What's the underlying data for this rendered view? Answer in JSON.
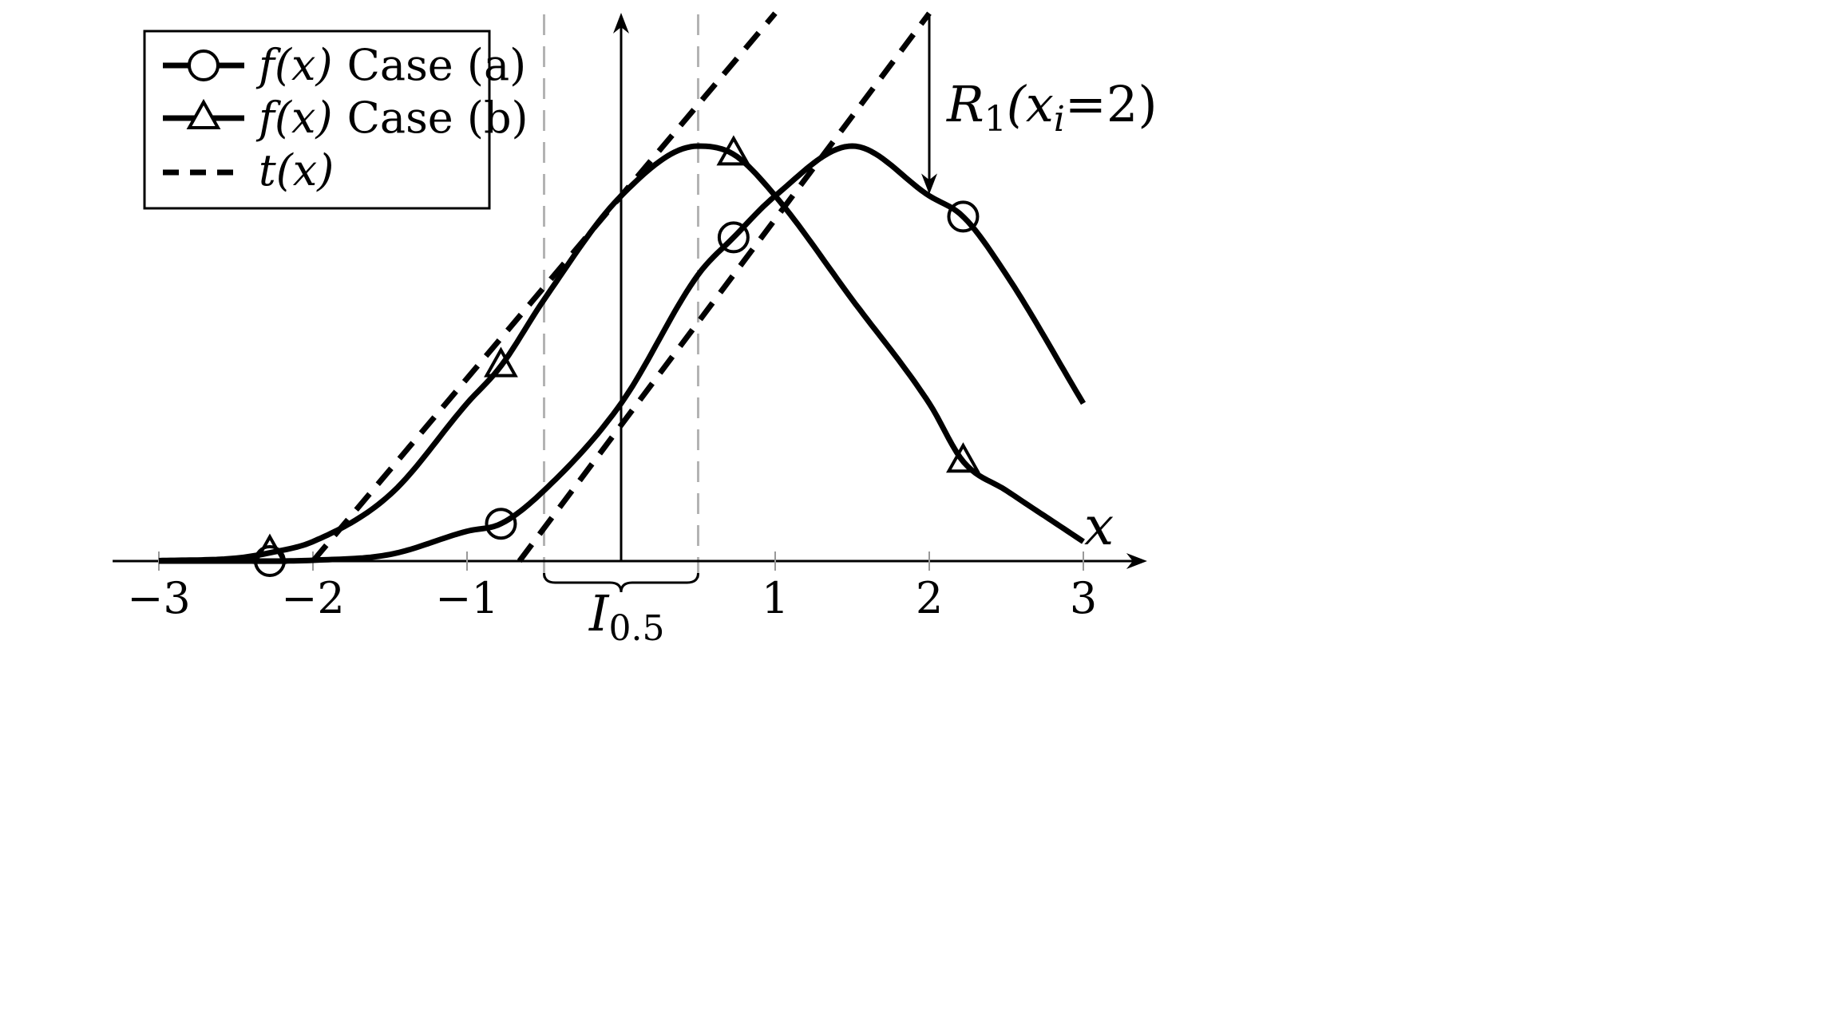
{
  "chart_data": {
    "type": "line",
    "xlabel": "x",
    "xlim": [
      -3.3,
      3.3
    ],
    "ylim": [
      -0.02,
      1.18
    ],
    "x_ticks": [
      -3,
      -2,
      -1,
      1,
      2,
      3
    ],
    "x_tick_labels": [
      "−3",
      "−2",
      "−1",
      "1",
      "2",
      "3"
    ],
    "legend_position": "top-left",
    "legend": [
      {
        "id": "a",
        "math": "f(x)",
        "text": "Case (a)",
        "marker": "circle",
        "style": "solid"
      },
      {
        "id": "b",
        "math": "f(x)",
        "text": "Case (b)",
        "marker": "triangle",
        "style": "solid"
      },
      {
        "id": "t",
        "math": "t(x)",
        "text": "",
        "marker": "none",
        "style": "dashed"
      }
    ],
    "series": [
      {
        "legend_ref": "a",
        "marker": "circle",
        "x": [
          -3,
          -2.5,
          -2.28,
          -2,
          -1.5,
          -1,
          -0.78,
          -0.5,
          0,
          0.5,
          0.73,
          1,
          1.5,
          2,
          2.22,
          2.5,
          3
        ],
        "y": [
          0.0,
          0.0,
          0.0,
          0.002,
          0.016,
          0.072,
          0.09,
          0.17,
          0.38,
          0.69,
          0.78,
          0.88,
          1.0,
          0.88,
          0.83,
          0.69,
          0.38
        ],
        "marker_x": [
          -2.28,
          -0.78,
          0.73,
          2.22
        ]
      },
      {
        "legend_ref": "b",
        "marker": "triangle",
        "x": [
          -3,
          -2.5,
          -2.28,
          -2,
          -1.5,
          -1,
          -0.78,
          -0.5,
          0,
          0.5,
          0.73,
          1,
          1.5,
          2,
          2.22,
          2.5,
          3
        ],
        "y": [
          0.001,
          0.007,
          0.02,
          0.047,
          0.16,
          0.38,
          0.47,
          0.63,
          0.88,
          1.0,
          0.98,
          0.88,
          0.63,
          0.38,
          0.24,
          0.17,
          0.047
        ],
        "marker_x": [
          -2.28,
          -0.78,
          0.73,
          2.22
        ]
      },
      {
        "legend_ref": "t",
        "style": "dashed",
        "x": [
          -2.0,
          1.0
        ],
        "y": [
          0.0,
          1.32
        ]
      },
      {
        "legend_ref": "t",
        "style": "dashed",
        "x": [
          -0.66,
          2.0
        ],
        "y": [
          0.0,
          1.32
        ]
      }
    ],
    "vertical_guides_x": [
      -0.5,
      0.5
    ],
    "annotations": {
      "interval": {
        "x": [
          -0.5,
          0.5
        ],
        "label_main": "I",
        "label_sub": "0.5"
      },
      "residual": {
        "x": 2.0,
        "y_from": 1.32,
        "y_to": 0.88,
        "label_main": "R",
        "label_sub": "1",
        "label_args": "(x",
        "label_sub2": "i",
        "label_rest": "=2)"
      }
    }
  }
}
